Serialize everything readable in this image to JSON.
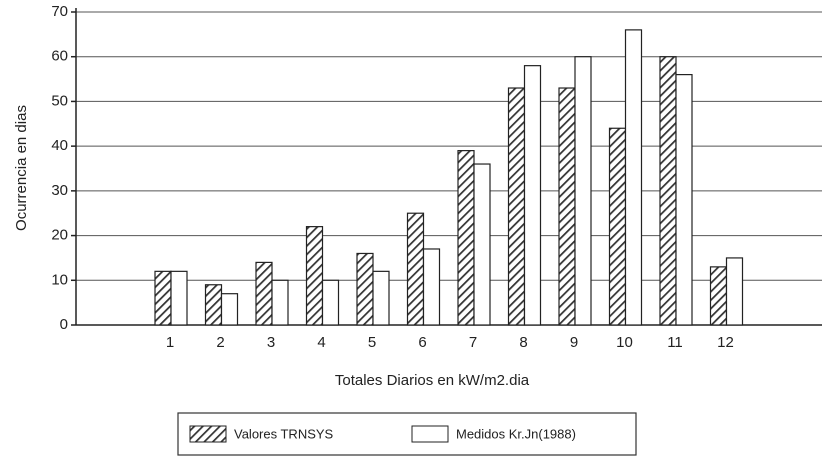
{
  "chart_data": {
    "type": "bar",
    "categories": [
      "1",
      "2",
      "3",
      "4",
      "5",
      "6",
      "7",
      "8",
      "9",
      "10",
      "11",
      "12"
    ],
    "series": [
      {
        "name": "Valores TRNSYS",
        "color": "#444444",
        "hatch": true,
        "values": [
          12,
          9,
          14,
          22,
          16,
          25,
          39,
          53,
          53,
          44,
          60,
          13
        ]
      },
      {
        "name": "Medidos Kr.Jn(1988)",
        "color": "#ffffff",
        "hatch": false,
        "values": [
          12,
          7,
          10,
          10,
          12,
          17,
          36,
          58,
          60,
          66,
          56,
          15
        ]
      }
    ],
    "y_label": "Ocurrencia en dias",
    "x_label": "Totales Diarios en kW/m2.dia",
    "ylim": [
      0,
      70
    ],
    "yticks": [
      0,
      10,
      20,
      30,
      40,
      50,
      60,
      70
    ],
    "grid": true
  }
}
